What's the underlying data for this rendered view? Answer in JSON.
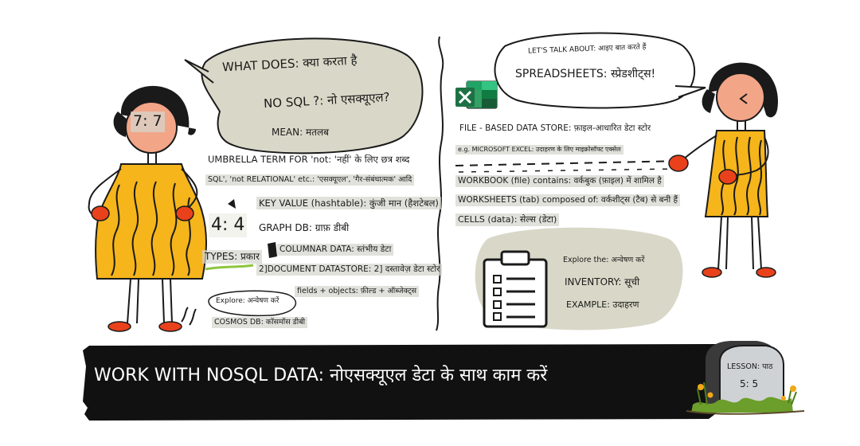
{
  "figures": {
    "left_face_badge": "7: 7",
    "number_badge": "4: 4"
  },
  "left_panel": {
    "bubble_line1": "WHAT DOES: क्या करता है",
    "bubble_line2": "NO SQL ?: नो एसक्यूएल?",
    "bubble_line3": "MEAN: मतलब",
    "umbrella": "UMBRELLA TERM FOR 'not: 'नहीं' के लिए छत्र शब्द",
    "not_relational": "SQL', 'not RELATIONAL' etc.: 'एसक्यूएल', 'गैर-संबंधात्मक' आदि",
    "key_value": "KEY VALUE (hashtable): कुंजी मान (हैशटेबल)",
    "graph_db": "GRAPH DB: ग्राफ़ डीबी",
    "types": "TYPES: प्रकार",
    "columnar": "COLUMNAR DATA: स्तंभीय डेटा",
    "document": "2]DOCUMENT DATASTORE: 2] दस्तावेज़ डेटा स्टोर",
    "explore": "Explore: अन्वेषण करें",
    "fields_objects": "fields + objects: फ़ील्ड + ऑब्जेक्ट्स",
    "cosmos": "COSMOS DB: कॉसमॉस डीबी"
  },
  "right_panel": {
    "bubble_line1": "LET'S TALK ABOUT: आइए बात करते हैं",
    "bubble_line2": "SPREADSHEETS: स्प्रेडशीट्स!",
    "file_store": "FILE - BASED DATA STORE: फ़ाइल-आधारित डेटा स्टोर",
    "excel_example": "e.g. MICROSOFT EXCEL: उदाहरण के लिए माइक्रोसॉफ्ट एक्सेल",
    "workbook": "WORKBOOK (file) contains: वर्कबुक (फ़ाइल) में शामिल है",
    "worksheets": "WORKSHEETS (tab) composed of: वर्कशीट्स (टैब) से बनी हैं",
    "cells": "CELLS (data): सेल्स (डेटा)",
    "explore": "Explore the: अन्वेषण करें",
    "inventory": "INVENTORY: सूची",
    "example": "EXAMPLE: उदाहरण"
  },
  "banner": {
    "title": "WORK WITH NOSQL DATA: नोएसक्यूएल डेटा के साथ काम करें"
  },
  "lesson": {
    "label": "LESSON: पाठ",
    "number": "5: 5"
  },
  "colors": {
    "dress": "#f5b51b",
    "dress_stripes": "#1a1a1a",
    "skin": "#f2a587",
    "shoes": "#e8411c",
    "bubble": "#d9d8c8",
    "banner": "#111111",
    "excel_green": "#1e7145",
    "grass": "#6b9e2a",
    "flowers": "#f0a818",
    "tombstone": "#cfd2d4"
  }
}
